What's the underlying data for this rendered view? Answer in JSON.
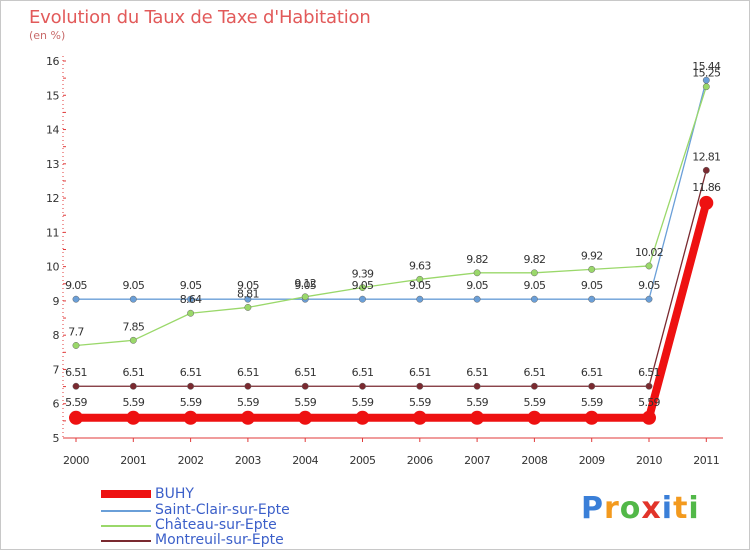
{
  "header": {
    "title": "Evolution du Taux de Taxe d'Habitation",
    "subtitle": "(en %)"
  },
  "chart_data": {
    "type": "line",
    "title": "Evolution du Taux de Taxe d'Habitation",
    "ylabel": "(en %)",
    "xlabel": "",
    "x": [
      "2000",
      "2001",
      "2002",
      "2003",
      "2004",
      "2005",
      "2006",
      "2007",
      "2008",
      "2009",
      "2010",
      "2011"
    ],
    "ylim": [
      5,
      16
    ],
    "yticks": [
      5,
      6,
      7,
      8,
      9,
      10,
      11,
      12,
      13,
      14,
      15,
      16
    ],
    "grid": false,
    "legend_position": "bottom-left",
    "series": [
      {
        "name": "BUHY",
        "color": "#ee1111",
        "values": [
          5.59,
          5.59,
          5.59,
          5.59,
          5.59,
          5.59,
          5.59,
          5.59,
          5.59,
          5.59,
          5.59,
          11.86
        ],
        "labels": [
          "5.59",
          "5.59",
          "5.59",
          "5.59",
          "5.59",
          "5.59",
          "5.59",
          "5.59",
          "5.59",
          "5.59",
          "5.59",
          "11.86"
        ]
      },
      {
        "name": "Saint-Clair-sur-Epte",
        "color": "#6a9fd8",
        "values": [
          9.05,
          9.05,
          9.05,
          9.05,
          9.05,
          9.05,
          9.05,
          9.05,
          9.05,
          9.05,
          9.05,
          15.44
        ],
        "labels": [
          "9.05",
          "9.05",
          "9.05",
          "9.05",
          "9.05",
          "9.05",
          "9.05",
          "9.05",
          "9.05",
          "9.05",
          "9.05",
          "15.44"
        ]
      },
      {
        "name": "Château-sur-Epte",
        "color": "#9ad86a",
        "values": [
          7.7,
          7.85,
          8.64,
          8.81,
          9.12,
          9.39,
          9.63,
          9.82,
          9.82,
          9.92,
          10.02,
          15.25
        ],
        "labels": [
          "7.7",
          "7.85",
          "8.64",
          "8.81",
          "9.12",
          "9.39",
          "9.63",
          "9.82",
          "9.82",
          "9.92",
          "10.02",
          "15.25"
        ]
      },
      {
        "name": "Montreuil-sur-Epte",
        "color": "#7a2a30",
        "values": [
          6.51,
          6.51,
          6.51,
          6.51,
          6.51,
          6.51,
          6.51,
          6.51,
          6.51,
          6.51,
          6.51,
          12.81
        ],
        "labels": [
          "6.51",
          "6.51",
          "6.51",
          "6.51",
          "6.51",
          "6.51",
          "6.51",
          "6.51",
          "6.51",
          "6.51",
          "6.51",
          "12.81"
        ]
      }
    ]
  },
  "legend": {
    "items": [
      {
        "label": "BUHY",
        "color": "#ee1111"
      },
      {
        "label": "Saint-Clair-sur-Epte",
        "color": "#6a9fd8"
      },
      {
        "label": "Château-sur-Epte",
        "color": "#9ad86a"
      },
      {
        "label": "Montreuil-sur-Epte",
        "color": "#7a2a30"
      }
    ]
  },
  "logo": {
    "letters": [
      "P",
      "r",
      "o",
      "x",
      "i",
      "t",
      "i"
    ],
    "colors": [
      "#3a7fd8",
      "#f39a1e",
      "#52b848",
      "#e2342a",
      "#3a7fd8",
      "#f39a1e",
      "#52b848"
    ]
  }
}
